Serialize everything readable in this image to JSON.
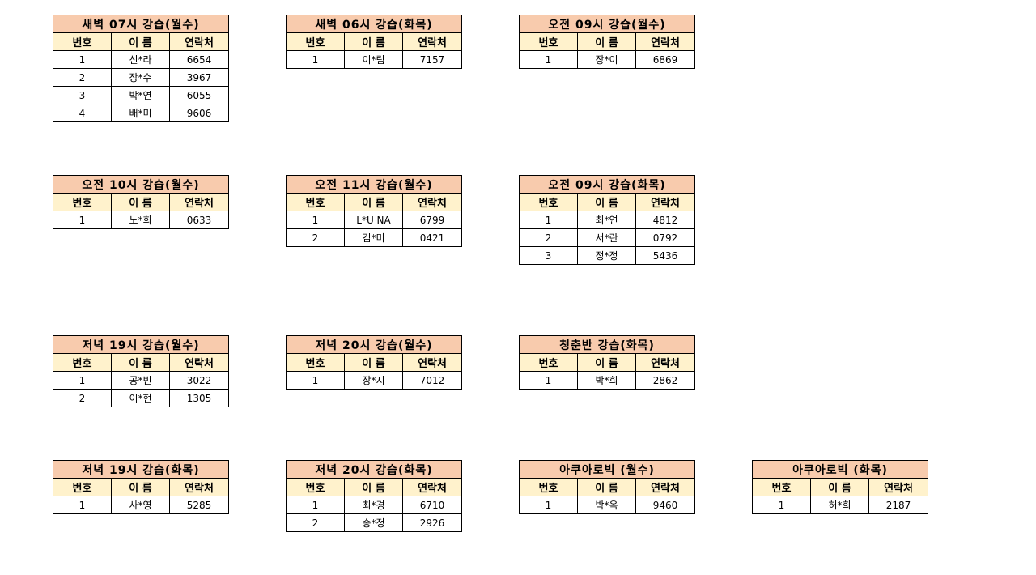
{
  "headers": [
    "번호",
    "이 름",
    "연락처"
  ],
  "colors": {
    "title_bg": "#f8cbad",
    "header_bg": "#fff2cc"
  },
  "tables": [
    {
      "title": "새벽 07시 강습(월수)",
      "rows": [
        [
          "1",
          "신*라",
          "6654"
        ],
        [
          "2",
          "장*수",
          "3967"
        ],
        [
          "3",
          "박*연",
          "6055"
        ],
        [
          "4",
          "배*미",
          "9606"
        ]
      ]
    },
    {
      "title": "새벽 06시 강습(화목)",
      "rows": [
        [
          "1",
          "이*림",
          "7157"
        ]
      ]
    },
    {
      "title": "오전 09시 강습(월수)",
      "rows": [
        [
          "1",
          "장*이",
          "6869"
        ]
      ]
    },
    {
      "title": "오전 10시 강습(월수)",
      "rows": [
        [
          "1",
          "노*희",
          "0633"
        ]
      ]
    },
    {
      "title": "오전 11시 강습(월수)",
      "rows": [
        [
          "1",
          "L*U NA",
          "6799"
        ],
        [
          "2",
          "김*미",
          "0421"
        ]
      ]
    },
    {
      "title": "오전 09시 강습(화목)",
      "rows": [
        [
          "1",
          "최*연",
          "4812"
        ],
        [
          "2",
          "서*란",
          "0792"
        ],
        [
          "3",
          "정*정",
          "5436"
        ]
      ]
    },
    {
      "title": "저녁 19시 강습(월수)",
      "rows": [
        [
          "1",
          "공*빈",
          "3022"
        ],
        [
          "2",
          "이*현",
          "1305"
        ]
      ]
    },
    {
      "title": "저녁 20시 강습(월수)",
      "rows": [
        [
          "1",
          "장*지",
          "7012"
        ]
      ]
    },
    {
      "title": "청춘반 강습(화목)",
      "rows": [
        [
          "1",
          "박*희",
          "2862"
        ]
      ]
    },
    {
      "title": "저녁 19시 강습(화목)",
      "rows": [
        [
          "1",
          "사*영",
          "5285"
        ]
      ]
    },
    {
      "title": "저녁 20시 강습(화목)",
      "rows": [
        [
          "1",
          "최*경",
          "6710"
        ],
        [
          "2",
          "송*정",
          "2926"
        ]
      ]
    },
    {
      "title": "아쿠아로빅 (월수)",
      "rows": [
        [
          "1",
          "박*옥",
          "9460"
        ]
      ]
    },
    {
      "title": "아쿠아로빅 (화목)",
      "rows": [
        [
          "1",
          "허*희",
          "2187"
        ]
      ]
    }
  ]
}
